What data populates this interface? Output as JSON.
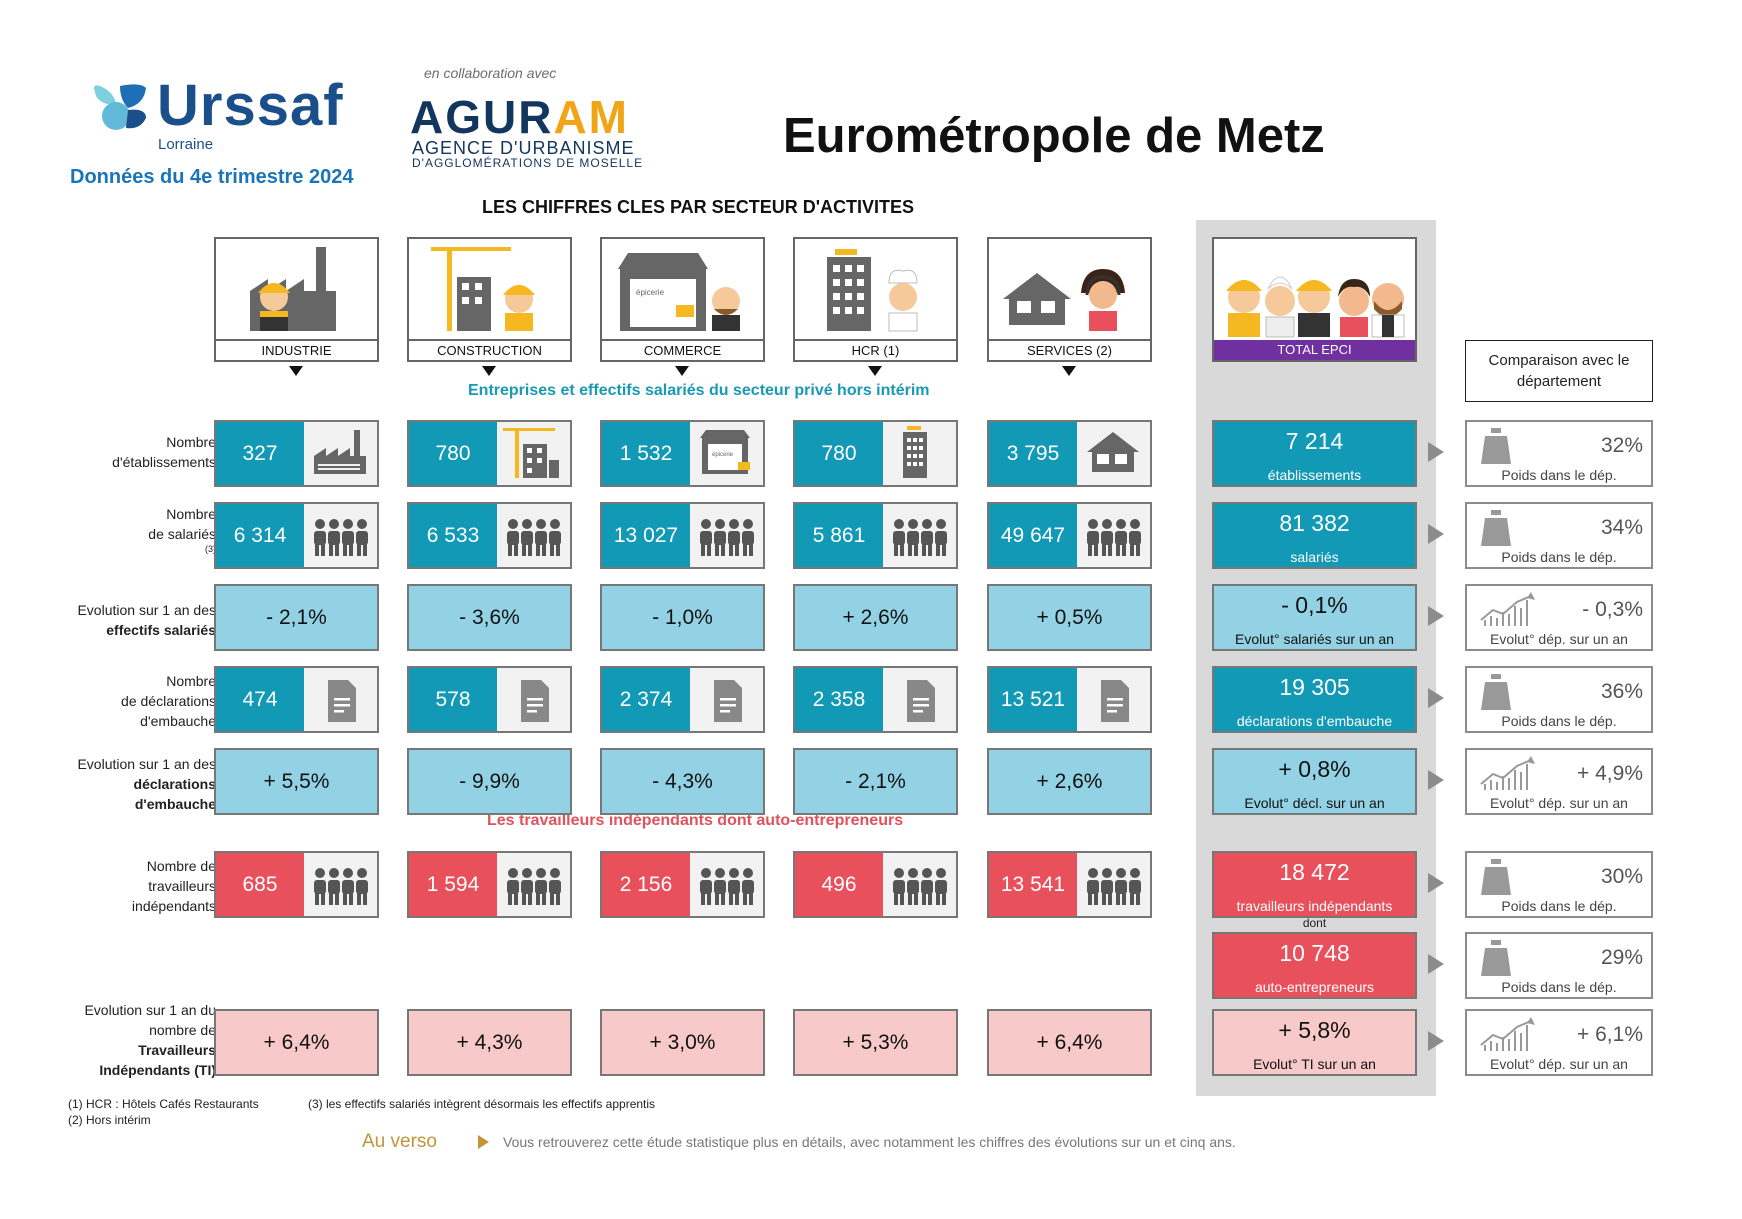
{
  "header": {
    "brand": "Urssaf",
    "brand_region": "Lorraine",
    "period": "Données du 4e trimestre 2024",
    "collab": "en collaboration avec",
    "partner_name_a": "AGUR",
    "partner_name_b": "AM",
    "partner_line1": "AGENCE D'URBANISME",
    "partner_line2": "D'AGGLOMÉRATIONS DE MOSELLE",
    "title": "Eurométropole de Metz",
    "section_title": "LES CHIFFRES CLES PAR SECTEUR D'ACTIVITES"
  },
  "sectors": [
    {
      "label": "INDUSTRIE"
    },
    {
      "label": "CONSTRUCTION"
    },
    {
      "label": "COMMERCE"
    },
    {
      "label": "HCR (1)"
    },
    {
      "label": "SERVICES (2)"
    }
  ],
  "total_label": "TOTAL EPCI",
  "compare_heading": "Comparaison avec le département",
  "subtitle_salaried": "Entreprises et effectifs salariés du secteur privé hors intérim",
  "subtitle_independent": "Les travailleurs indépendants dont auto-entrepreneurs",
  "rows": {
    "etablissements": {
      "label_l1": "Nombre",
      "label_l2": "d'établissements",
      "values": [
        "327",
        "780",
        "1 532",
        "780",
        "3 795"
      ],
      "total": "7 214",
      "total_caption": "établissements",
      "compare": "32%",
      "compare_caption": "Poids dans le dép."
    },
    "salaries": {
      "label_l1": "Nombre",
      "label_l2": "de salariés",
      "label_note": "(3)",
      "values": [
        "6 314",
        "6 533",
        "13 027",
        "5 861",
        "49 647"
      ],
      "total": "81 382",
      "total_caption": "salariés",
      "compare": "34%",
      "compare_caption": "Poids dans le dép."
    },
    "evol_salaries": {
      "label_l1": "Evolution sur 1 an des",
      "label_l2": "effectifs salariés",
      "values": [
        "- 2,1%",
        "- 3,6%",
        "- 1,0%",
        "+ 2,6%",
        "+ 0,5%"
      ],
      "total": "- 0,1%",
      "total_caption": "Evolut° salariés sur un an",
      "compare": "- 0,3%",
      "compare_caption": "Evolut° dép. sur un an"
    },
    "embauches": {
      "label_l1": "Nombre",
      "label_l2": "de déclarations",
      "label_l3": "d'embauche",
      "values": [
        "474",
        "578",
        "2 374",
        "2 358",
        "13 521"
      ],
      "total": "19 305",
      "total_caption": "déclarations d'embauche",
      "compare": "36%",
      "compare_caption": "Poids dans le dép."
    },
    "evol_embauches": {
      "label_l1": "Evolution sur 1 an des",
      "label_l2": "déclarations",
      "label_l3": "d'embauche",
      "values": [
        "+ 5,5%",
        "- 9,9%",
        "- 4,3%",
        "- 2,1%",
        "+ 2,6%"
      ],
      "total": "+ 0,8%",
      "total_caption": "Evolut° décl. sur un an",
      "compare": "+ 4,9%",
      "compare_caption": "Evolut° dép. sur un an"
    },
    "independants": {
      "label_l1": "Nombre de",
      "label_l2": "travailleurs",
      "label_l3": "indépendants",
      "values": [
        "685",
        "1 594",
        "2 156",
        "496",
        "13 541"
      ],
      "total": "18 472",
      "total_caption": "travailleurs indépendants",
      "compare": "30%",
      "compare_caption": "Poids dans le dép."
    },
    "auto": {
      "dont": "dont",
      "total": "10 748",
      "total_caption": "auto-entrepreneurs",
      "compare": "29%",
      "compare_caption": "Poids dans le dép."
    },
    "evol_ti": {
      "label_l1": "Evolution sur 1 an du",
      "label_l2": "nombre de",
      "label_l3": "Travailleurs",
      "label_l4": "Indépendants (TI)",
      "values": [
        "+ 6,4%",
        "+ 4,3%",
        "+ 3,0%",
        "+ 5,3%",
        "+ 6,4%"
      ],
      "total": "+ 5,8%",
      "total_caption": "Evolut° TI sur un an",
      "compare": "+ 6,1%",
      "compare_caption": "Evolut° dép. sur un an"
    }
  },
  "footnotes": {
    "f1": "(1) HCR : Hôtels Cafés Restaurants",
    "f2": "(2) Hors intérim",
    "f3": "(3) les effectifs salariés intègrent désormais les effectifs apprentis"
  },
  "verso": {
    "label": "Au verso",
    "text": "Vous retrouverez cette étude statistique plus en détails, avec notamment les chiffres des évolutions sur un et cinq ans."
  },
  "colors": {
    "teal": "#1199b5",
    "light_blue": "#92d2e4",
    "red": "#e8505b",
    "pink": "#f8c9c9",
    "purple": "#7030a0",
    "urssaf_blue": "#1b4f8c",
    "verso_gold": "#c09538"
  },
  "icons": [
    "factory-icon",
    "crane-building-icon",
    "shop-icon",
    "hotel-icon",
    "house-icon",
    "people-icon",
    "document-icon",
    "weight-icon",
    "growth-chart-icon",
    "worker-icon"
  ]
}
